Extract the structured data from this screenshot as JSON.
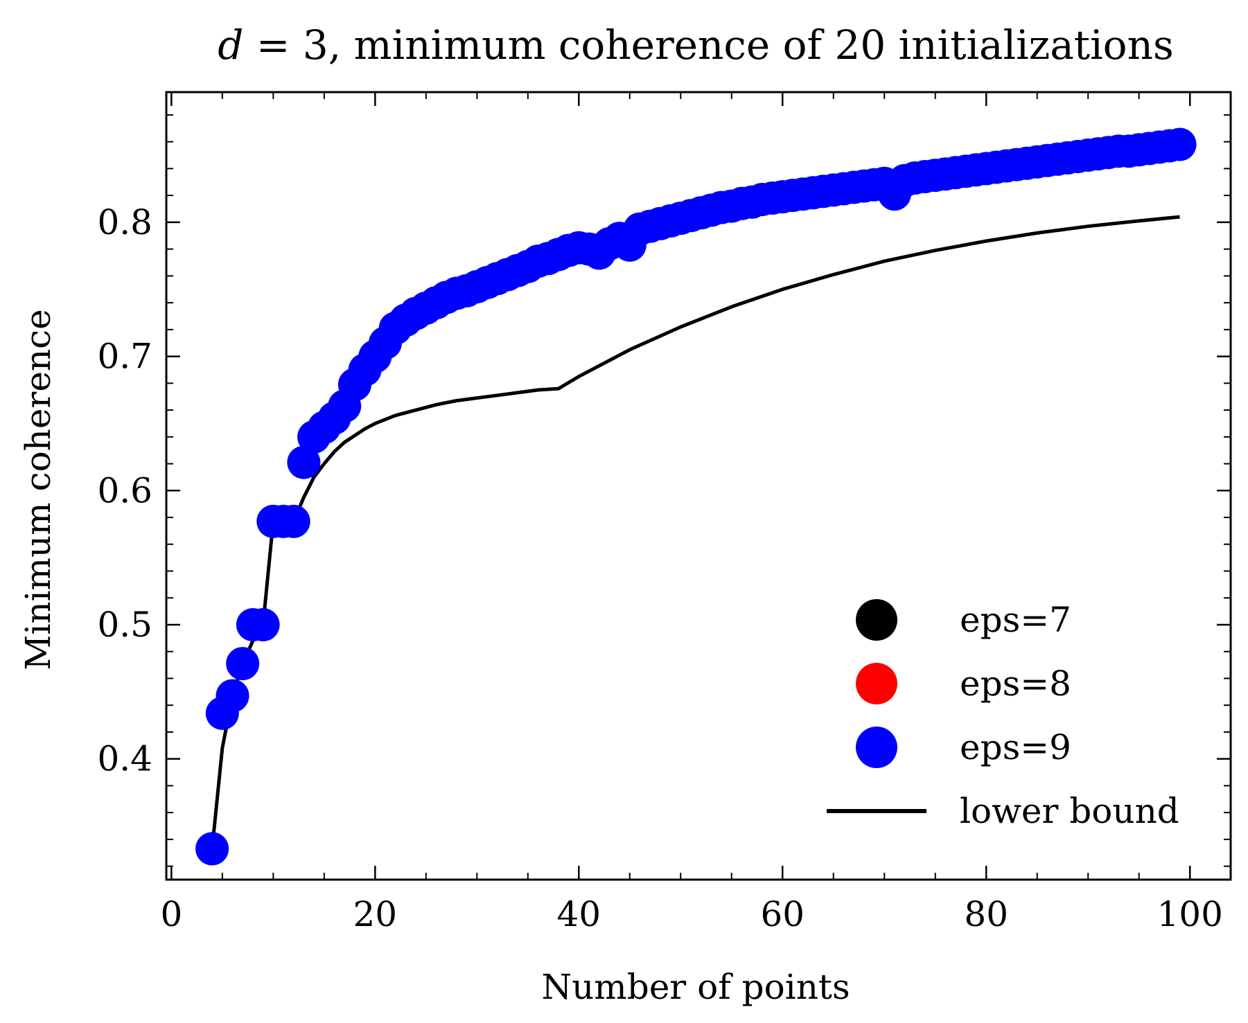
{
  "chart_data": {
    "type": "scatter",
    "title": {
      "variable": "d",
      "rest": " = 3, minimum coherence of 20 initializations"
    },
    "xlabel": "Number of points",
    "ylabel": "Minimum coherence",
    "xlim": [
      -0.5,
      104
    ],
    "ylim": [
      0.31,
      0.897
    ],
    "xticks": [
      0,
      20,
      40,
      60,
      80,
      100
    ],
    "xtick_labels": [
      "0",
      "20",
      "40",
      "60",
      "80",
      "100"
    ],
    "yticks": [
      0.4,
      0.5,
      0.6,
      0.7,
      0.8
    ],
    "ytick_labels": [
      "0.4",
      "0.5",
      "0.6",
      "0.7",
      "0.8"
    ],
    "grid": false,
    "legend_position": "bottom-right",
    "series": [
      {
        "name": "eps=7",
        "kind": "scatter",
        "color": "#000000",
        "x": [],
        "y": []
      },
      {
        "name": "eps=8",
        "kind": "scatter",
        "color": "#ff0000",
        "x": [],
        "y": []
      },
      {
        "name": "eps=9",
        "kind": "scatter",
        "color": "#0000ff",
        "x": [
          4,
          5,
          6,
          7,
          8,
          9,
          10,
          11,
          12,
          13,
          14,
          15,
          16,
          17,
          18,
          19,
          20,
          21,
          22,
          23,
          24,
          25,
          26,
          27,
          28,
          29,
          30,
          31,
          32,
          33,
          34,
          35,
          36,
          37,
          38,
          39,
          40,
          41,
          42,
          43,
          44,
          45,
          46,
          47,
          48,
          49,
          50,
          51,
          52,
          53,
          54,
          55,
          56,
          57,
          58,
          59,
          60,
          61,
          62,
          63,
          64,
          65,
          66,
          67,
          68,
          69,
          70,
          71,
          72,
          73,
          74,
          75,
          76,
          77,
          78,
          79,
          80,
          81,
          82,
          83,
          84,
          85,
          86,
          87,
          88,
          89,
          90,
          91,
          92,
          93,
          94,
          95,
          96,
          97,
          98,
          99
        ],
        "y": [
          0.333,
          0.434,
          0.447,
          0.471,
          0.5,
          0.5,
          0.577,
          0.577,
          0.577,
          0.621,
          0.64,
          0.647,
          0.654,
          0.663,
          0.679,
          0.69,
          0.7,
          0.71,
          0.721,
          0.727,
          0.732,
          0.736,
          0.74,
          0.744,
          0.747,
          0.749,
          0.752,
          0.755,
          0.758,
          0.761,
          0.764,
          0.767,
          0.771,
          0.773,
          0.776,
          0.779,
          0.781,
          0.78,
          0.777,
          0.784,
          0.788,
          0.783,
          0.795,
          0.797,
          0.799,
          0.801,
          0.803,
          0.805,
          0.807,
          0.809,
          0.811,
          0.812,
          0.814,
          0.815,
          0.817,
          0.818,
          0.819,
          0.82,
          0.821,
          0.822,
          0.823,
          0.824,
          0.825,
          0.826,
          0.827,
          0.828,
          0.829,
          0.821,
          0.831,
          0.833,
          0.834,
          0.835,
          0.836,
          0.837,
          0.838,
          0.839,
          0.84,
          0.841,
          0.842,
          0.843,
          0.844,
          0.845,
          0.846,
          0.847,
          0.848,
          0.849,
          0.85,
          0.851,
          0.852,
          0.853,
          0.853,
          0.854,
          0.855,
          0.856,
          0.857,
          0.858
        ]
      },
      {
        "name": "lower bound",
        "kind": "line",
        "color": "#000000",
        "x": [
          4,
          5,
          6,
          7,
          8,
          9,
          10,
          11,
          12,
          13,
          14,
          15,
          16,
          17,
          18,
          19,
          20,
          22,
          24,
          26,
          28,
          30,
          32,
          34,
          36,
          38,
          40,
          45,
          50,
          55,
          60,
          65,
          70,
          75,
          80,
          85,
          90,
          95,
          99
        ],
        "y": [
          0.333,
          0.408,
          0.447,
          0.471,
          0.488,
          0.5,
          0.577,
          0.577,
          0.577,
          0.595,
          0.61,
          0.62,
          0.629,
          0.636,
          0.641,
          0.646,
          0.65,
          0.656,
          0.66,
          0.664,
          0.667,
          0.669,
          0.671,
          0.673,
          0.675,
          0.676,
          0.685,
          0.705,
          0.722,
          0.737,
          0.75,
          0.761,
          0.771,
          0.779,
          0.786,
          0.792,
          0.797,
          0.801,
          0.804
        ]
      }
    ]
  }
}
